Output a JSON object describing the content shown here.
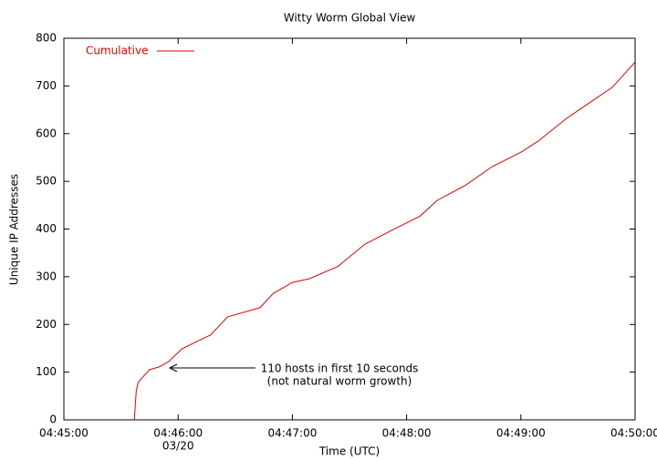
{
  "chart_data": {
    "type": "line",
    "title": "Witty Worm Global View",
    "xlabel": "Time (UTC)",
    "ylabel": "Unique IP Addresses",
    "series": [
      {
        "name": "Cumulative",
        "color": "#e00000",
        "x": [
          "04:45:37",
          "04:45:38",
          "04:45:39",
          "04:45:41",
          "04:45:45",
          "04:45:50",
          "04:45:55",
          "04:46:02",
          "04:46:17",
          "04:46:26",
          "04:46:43",
          "04:46:50",
          "04:47:00",
          "04:47:09",
          "04:47:24",
          "04:47:38",
          "04:47:52",
          "04:48:07",
          "04:48:16",
          "04:48:31",
          "04:48:45",
          "04:49:00",
          "04:49:09",
          "04:49:24",
          "04:49:38",
          "04:49:48",
          "04:50:00"
        ],
        "values": [
          0,
          60,
          78,
          88,
          105,
          111,
          122,
          149,
          178,
          216,
          235,
          265,
          288,
          296,
          322,
          368,
          397,
          427,
          460,
          492,
          531,
          561,
          584,
          632,
          670,
          697,
          750
        ]
      }
    ],
    "xlim": [
      "04:45:00",
      "04:50:00"
    ],
    "xticks": [
      "04:45:00",
      {
        "value": "04:46:00",
        "label": "04:46:00",
        "sublabel": "03/20"
      },
      "04:47:00",
      "04:48:00",
      "04:49:00",
      "04:50:00"
    ],
    "ylim": [
      0,
      800
    ],
    "yticks": [
      0,
      100,
      200,
      300,
      400,
      500,
      600,
      700,
      800
    ],
    "legend": "top-left",
    "annotation": [
      "110 hosts in first 10 seconds",
      "(not natural worm growth)"
    ]
  }
}
